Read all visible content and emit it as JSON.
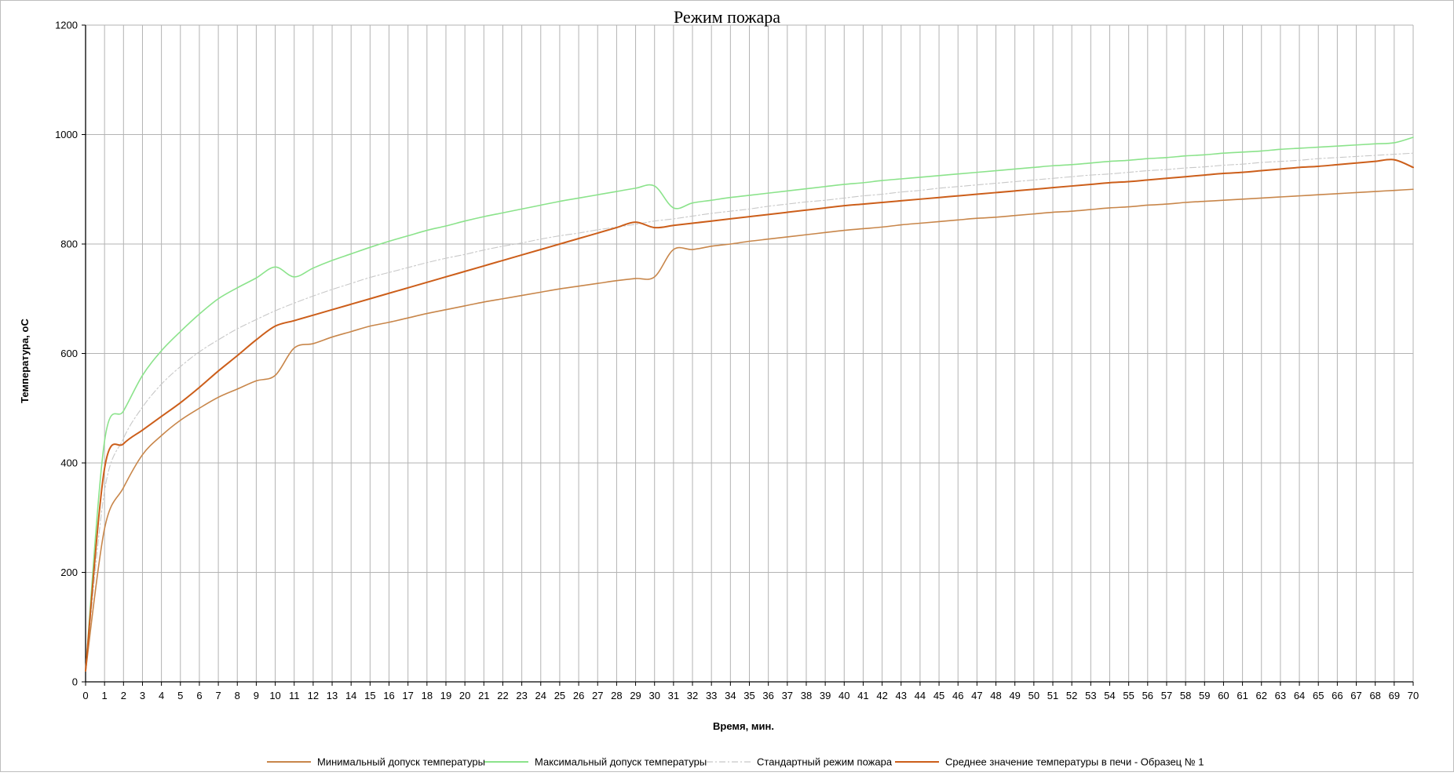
{
  "chart_data": {
    "type": "line",
    "title": "Режим пожара",
    "xlabel": "Время, мин.",
    "ylabel": "Температура, оС",
    "xlim": [
      0,
      70
    ],
    "ylim": [
      0,
      1200
    ],
    "yticks": [
      0,
      200,
      400,
      600,
      800,
      1000,
      1200
    ],
    "grid": true,
    "legend_position": "bottom",
    "series": [
      {
        "name": "Минимальный допуск температуры",
        "color": "#c8864a",
        "dash": "solid",
        "x": [
          0,
          1,
          2,
          3,
          4,
          5,
          6,
          7,
          8,
          9,
          10,
          11,
          12,
          13,
          14,
          15,
          16,
          17,
          18,
          19,
          20,
          21,
          22,
          23,
          24,
          25,
          26,
          27,
          28,
          29,
          30,
          31,
          32,
          33,
          34,
          35,
          36,
          37,
          38,
          39,
          40,
          41,
          42,
          43,
          44,
          45,
          46,
          47,
          48,
          49,
          50,
          51,
          52,
          53,
          54,
          55,
          56,
          57,
          58,
          59,
          60,
          61,
          62,
          63,
          64,
          65,
          66,
          67,
          68,
          69,
          70
        ],
        "values": [
          20,
          280,
          355,
          415,
          450,
          478,
          500,
          520,
          535,
          550,
          560,
          610,
          618,
          630,
          640,
          650,
          657,
          665,
          673,
          680,
          687,
          694,
          700,
          706,
          712,
          718,
          723,
          728,
          733,
          737,
          740,
          790,
          790,
          796,
          800,
          805,
          809,
          813,
          817,
          821,
          825,
          828,
          831,
          835,
          838,
          841,
          844,
          847,
          849,
          852,
          855,
          858,
          860,
          863,
          866,
          868,
          871,
          873,
          876,
          878,
          880,
          882,
          884,
          886,
          888,
          890,
          892,
          894,
          896,
          898,
          900
        ]
      },
      {
        "name": "Максимальный допуск температуры",
        "color": "#8be38b",
        "dash": "solid",
        "x": [
          0,
          1,
          2,
          3,
          4,
          5,
          6,
          7,
          8,
          9,
          10,
          11,
          12,
          13,
          14,
          15,
          16,
          17,
          18,
          19,
          20,
          21,
          22,
          23,
          24,
          25,
          26,
          27,
          28,
          29,
          30,
          31,
          32,
          33,
          34,
          35,
          36,
          37,
          38,
          39,
          40,
          41,
          42,
          43,
          44,
          45,
          46,
          47,
          48,
          49,
          50,
          51,
          52,
          53,
          54,
          55,
          56,
          57,
          58,
          59,
          60,
          61,
          62,
          63,
          64,
          65,
          66,
          67,
          68,
          69,
          70
        ],
        "values": [
          20,
          440,
          495,
          560,
          605,
          640,
          672,
          700,
          720,
          738,
          758,
          740,
          756,
          770,
          782,
          794,
          805,
          815,
          825,
          833,
          842,
          850,
          857,
          864,
          871,
          878,
          884,
          890,
          896,
          902,
          906,
          866,
          875,
          880,
          885,
          889,
          893,
          897,
          901,
          905,
          909,
          912,
          916,
          919,
          922,
          925,
          928,
          931,
          934,
          937,
          940,
          943,
          945,
          948,
          951,
          953,
          956,
          958,
          961,
          963,
          966,
          968,
          970,
          973,
          975,
          977,
          979,
          981,
          983,
          985,
          995
        ]
      },
      {
        "name": "Стандартный режим пожара",
        "color": "#c8c8c8",
        "dash": "8 3 2 3",
        "x": [
          0,
          1,
          2,
          3,
          4,
          5,
          6,
          7,
          8,
          9,
          10,
          11,
          12,
          13,
          14,
          15,
          16,
          17,
          18,
          19,
          20,
          21,
          22,
          23,
          24,
          25,
          26,
          27,
          28,
          29,
          30,
          31,
          32,
          33,
          34,
          35,
          36,
          37,
          38,
          39,
          40,
          41,
          42,
          43,
          44,
          45,
          46,
          47,
          48,
          49,
          50,
          51,
          52,
          53,
          54,
          55,
          56,
          57,
          58,
          59,
          60,
          61,
          62,
          63,
          64,
          65,
          66,
          67,
          68,
          69,
          70
        ],
        "values": [
          20,
          349,
          445,
          502,
          544,
          576,
          603,
          625,
          645,
          662,
          678,
          692,
          705,
          717,
          728,
          739,
          748,
          757,
          766,
          774,
          781,
          789,
          796,
          802,
          809,
          815,
          820,
          826,
          831,
          836,
          842,
          846,
          851,
          856,
          860,
          864,
          869,
          873,
          877,
          880,
          884,
          888,
          891,
          895,
          898,
          902,
          905,
          908,
          911,
          914,
          917,
          920,
          923,
          926,
          928,
          931,
          934,
          936,
          939,
          941,
          944,
          946,
          949,
          951,
          953,
          956,
          958,
          960,
          962,
          964,
          966
        ]
      },
      {
        "name": "Среднее значение температуры в печи - Образец № 1",
        "color": "#cc5e1a",
        "dash": "solid",
        "x": [
          0,
          1,
          2,
          3,
          4,
          5,
          6,
          7,
          8,
          9,
          10,
          11,
          12,
          13,
          14,
          15,
          16,
          17,
          18,
          19,
          20,
          21,
          22,
          23,
          24,
          25,
          26,
          27,
          28,
          29,
          30,
          31,
          32,
          33,
          34,
          35,
          36,
          37,
          38,
          39,
          40,
          41,
          42,
          43,
          44,
          45,
          46,
          47,
          48,
          49,
          50,
          51,
          52,
          53,
          54,
          55,
          56,
          57,
          58,
          59,
          60,
          61,
          62,
          63,
          64,
          65,
          66,
          67,
          68,
          69,
          70
        ],
        "values": [
          20,
          390,
          435,
          460,
          485,
          510,
          538,
          568,
          596,
          625,
          650,
          660,
          670,
          680,
          690,
          700,
          710,
          720,
          730,
          740,
          750,
          760,
          770,
          780,
          790,
          800,
          810,
          820,
          830,
          840,
          830,
          834,
          838,
          842,
          846,
          850,
          854,
          858,
          862,
          866,
          870,
          873,
          876,
          879,
          882,
          885,
          888,
          891,
          894,
          897,
          900,
          903,
          906,
          909,
          912,
          914,
          917,
          920,
          923,
          926,
          929,
          931,
          934,
          937,
          940,
          942,
          945,
          948,
          951,
          954,
          940
        ]
      }
    ]
  }
}
